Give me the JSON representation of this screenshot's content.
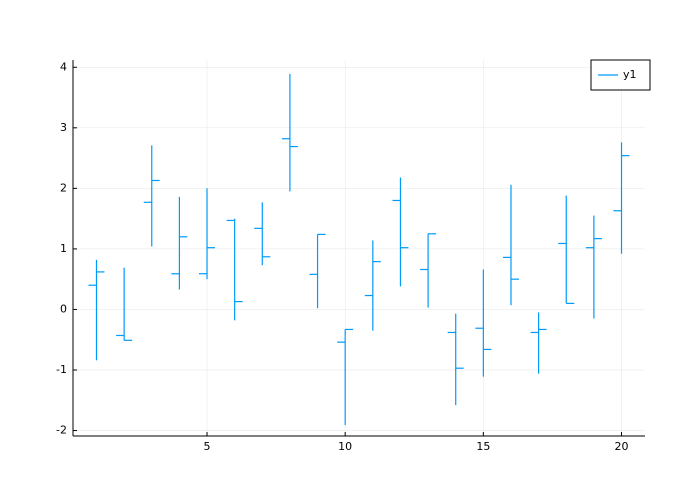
{
  "chart_data": {
    "type": "ohlc",
    "x": [
      1,
      2,
      3,
      4,
      5,
      6,
      7,
      8,
      9,
      10,
      11,
      12,
      13,
      14,
      15,
      16,
      17,
      18,
      19,
      20
    ],
    "series": [
      {
        "name": "y1",
        "color": "#009af9",
        "open": [
          0.4,
          -0.43,
          1.77,
          0.59,
          0.59,
          1.47,
          1.34,
          2.82,
          0.58,
          -0.54,
          0.23,
          1.8,
          0.66,
          -0.38,
          -0.31,
          0.86,
          -0.38,
          1.09,
          1.02,
          1.63
        ],
        "high": [
          0.82,
          0.69,
          2.71,
          1.86,
          2.0,
          1.5,
          1.77,
          3.89,
          1.24,
          -0.33,
          1.14,
          2.18,
          1.25,
          -0.07,
          0.66,
          2.06,
          -0.05,
          1.88,
          1.55,
          2.76
        ],
        "low": [
          -0.84,
          -0.51,
          1.04,
          0.33,
          0.5,
          -0.18,
          0.73,
          1.95,
          0.02,
          -1.91,
          -0.35,
          0.38,
          0.03,
          -1.58,
          -1.11,
          0.07,
          -1.06,
          0.1,
          -0.15,
          0.92
        ],
        "close": [
          0.62,
          -0.51,
          2.13,
          1.2,
          1.02,
          0.13,
          0.87,
          2.69,
          1.24,
          -0.33,
          0.79,
          1.02,
          1.25,
          -0.97,
          -0.66,
          0.5,
          -0.33,
          0.1,
          1.17,
          2.54
        ]
      }
    ],
    "xlim": [
      0.15,
      20.85
    ],
    "ylim": [
      -2.09,
      4.12
    ],
    "xticks": [
      5,
      10,
      15,
      20
    ],
    "yticks": [
      -2,
      -1,
      0,
      1,
      2,
      3,
      4
    ],
    "grid": true,
    "legend": "top-right"
  }
}
